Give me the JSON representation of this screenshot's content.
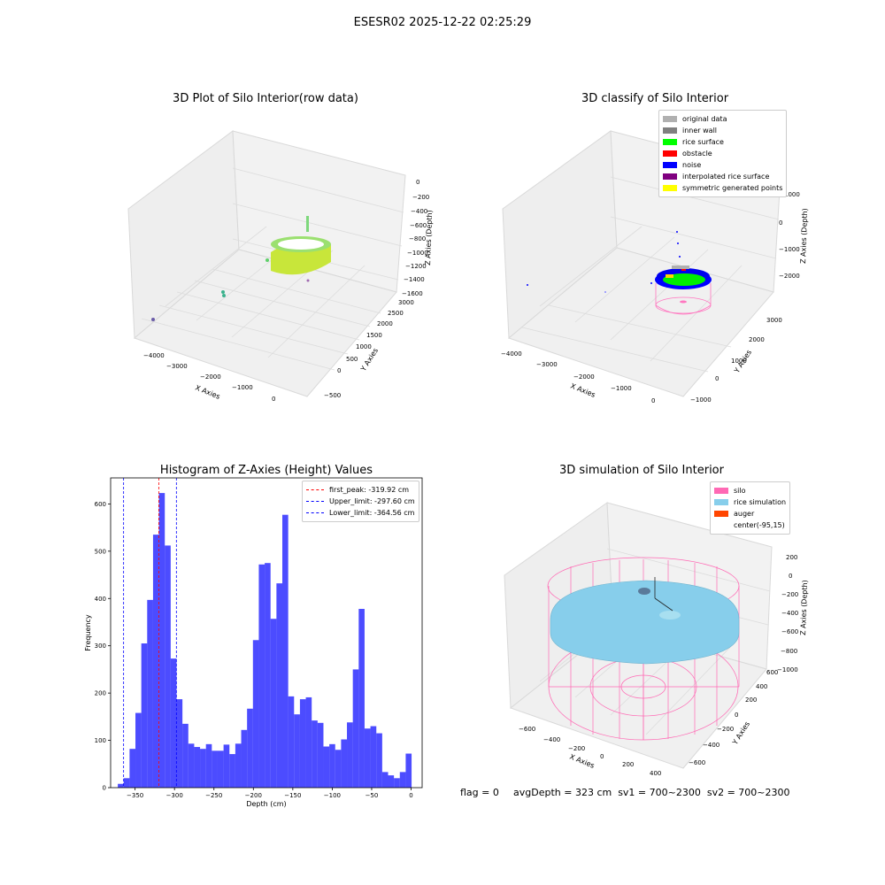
{
  "figure": {
    "suptitle": "ESESR02 2025-12-22 02:25:29"
  },
  "panels": {
    "raw": {
      "title": "3D Plot of Silo Interior(row data)",
      "xlabel": "X Axies",
      "ylabel": "Y Axies",
      "zlabel": "Z Axies (Depth)",
      "xticks": [
        "−4000",
        "−3000",
        "−2000",
        "−1000",
        "0"
      ],
      "yticks": [
        "−500",
        "0",
        "500",
        "1000",
        "1500",
        "2000",
        "2500",
        "3000"
      ],
      "zticks": [
        "0",
        "−200",
        "−400",
        "−600",
        "−800",
        "−1000",
        "−1200",
        "−1400",
        "−1600"
      ]
    },
    "classify": {
      "title": "3D classify of Silo Interior",
      "xlabel": "X Axies",
      "ylabel": "Y Axies",
      "zlabel": "Z Axies (Depth)",
      "xticks": [
        "−4000",
        "−3000",
        "−2000",
        "−1000",
        "0"
      ],
      "yticks": [
        "−1000",
        "0",
        "1000",
        "2000",
        "3000"
      ],
      "zticks": [
        "1000",
        "0",
        "−1000",
        "−2000"
      ],
      "legend": [
        {
          "label": "original data",
          "color": "#b0b0b0"
        },
        {
          "label": "inner wall",
          "color": "#808080"
        },
        {
          "label": "rice surface",
          "color": "#00ff00"
        },
        {
          "label": "obstacle",
          "color": "#ff0000"
        },
        {
          "label": "noise",
          "color": "#0000ff"
        },
        {
          "label": "interpolated rice surface",
          "color": "#800080"
        },
        {
          "label": "symmetric generated points",
          "color": "#ffff00"
        }
      ]
    },
    "simulation": {
      "title": "3D simulation of Silo Interior",
      "xlabel": "X Axies",
      "ylabel": "Y Axies",
      "zlabel": "Z Axies (Depth)",
      "xticks": [
        "−600",
        "−400",
        "−200",
        "0",
        "200",
        "400"
      ],
      "yticks": [
        "−600",
        "−400",
        "−200",
        "0",
        "200",
        "400",
        "600"
      ],
      "zticks": [
        "200",
        "0",
        "−200",
        "−400",
        "−600",
        "−800",
        "−1000"
      ],
      "legend": [
        {
          "label": "silo",
          "color": "#ff69b4"
        },
        {
          "label": "rice simulation",
          "color": "#87ceeb"
        },
        {
          "label": "auger",
          "color": "#ff4500"
        },
        {
          "label": "center(-95,15)",
          "color": ""
        }
      ]
    }
  },
  "chart_data": [
    {
      "type": "bar",
      "title": "Histogram of Z-Axies (Height) Values",
      "xlabel": "Depth (cm)",
      "ylabel": "Frequency",
      "xlim": [
        -381,
        14
      ],
      "ylim": [
        0,
        655
      ],
      "xticks": [
        -350,
        -300,
        -250,
        -200,
        -150,
        -100,
        -50,
        0
      ],
      "xtick_labels": [
        "−350",
        "−300",
        "−250",
        "−200",
        "−150",
        "−100",
        "−50",
        "0"
      ],
      "yticks": [
        0,
        100,
        200,
        300,
        400,
        500,
        600
      ],
      "bin_start": -371.9,
      "bin_width": 7.45,
      "bar_color": "#0000ff",
      "counts": [
        8,
        20,
        82,
        158,
        305,
        397,
        535,
        623,
        512,
        273,
        187,
        135,
        93,
        86,
        82,
        92,
        78,
        78,
        91,
        71,
        93,
        122,
        167,
        312,
        472,
        475,
        357,
        432,
        577,
        193,
        155,
        187,
        191,
        142,
        137,
        87,
        92,
        80,
        102,
        138,
        250,
        378,
        125,
        130,
        115,
        33,
        26,
        20,
        33,
        72
      ],
      "vlines": [
        {
          "x": -319.92,
          "color": "#ff0000",
          "label": "first_peak: -319.92 cm"
        },
        {
          "x": -297.6,
          "color": "#0000ff",
          "label": "Upper_limit: -297.60 cm"
        },
        {
          "x": -364.56,
          "color": "#0000ff",
          "label": "Lower_limit: -364.56 cm"
        }
      ],
      "legend_position": "top-right"
    }
  ],
  "footer": {
    "flag": "flag = 0",
    "stats": "avgDepth = 323 cm  sv1 = 700~2300  sv2 = 700~2300"
  }
}
